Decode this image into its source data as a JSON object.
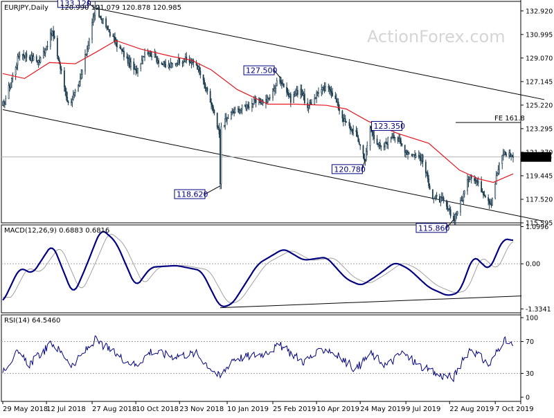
{
  "chart_data": {
    "type": "candlestick",
    "symbol_header": "EURJPY,Daily",
    "ohlc_header": "120.990 121.079 120.878 120.985",
    "watermark": "ActionForex.com",
    "last_price": "120.985",
    "colors": {
      "ma": "#e8141e",
      "channel": "#000000",
      "candles": "#1c3c4f",
      "macd": "#000080",
      "signal": "#a0a0a0",
      "ann_text": "#000080"
    },
    "price_axis": {
      "ylim": [
        115.595,
        133.7
      ],
      "ticks": [
        "132.920",
        "130.995",
        "129.070",
        "127.145",
        "125.220",
        "123.295",
        "121.370",
        "119.445",
        "117.520",
        "115.595"
      ]
    },
    "annotations": [
      {
        "text": "133.120",
        "date": "2018-08-30",
        "value": 133.12
      },
      {
        "text": "127.500",
        "date": "2019-03-04",
        "value": 127.5
      },
      {
        "text": "118.620",
        "date": "2019-01-03",
        "value": 118.62
      },
      {
        "text": "123.350",
        "date": "2019-06-03",
        "value": 123.35
      },
      {
        "text": "120.780",
        "date": "2019-05-29",
        "value": 120.78
      },
      {
        "text": "115.860",
        "date": "2019-08-26",
        "value": 115.86
      }
    ],
    "fe_level": {
      "label": "FE 161.8",
      "value": 123.8
    },
    "channel_lines": [
      {
        "from": {
          "date": "2018-05-29",
          "value": 124.85
        },
        "to": {
          "date": "2019-10-25",
          "value": 115.55
        }
      },
      {
        "from": {
          "date": "2018-08-30",
          "value": 133.15
        },
        "to": {
          "date": "2019-10-25",
          "value": 125.5
        }
      }
    ],
    "key_points": [
      {
        "date": "2018-05-29",
        "value": 125.0
      },
      {
        "date": "2018-06-15",
        "value": 129.5
      },
      {
        "date": "2018-07-05",
        "value": 128.8
      },
      {
        "date": "2018-07-18",
        "value": 131.2
      },
      {
        "date": "2018-08-03",
        "value": 125.3
      },
      {
        "date": "2018-08-13",
        "value": 126.6
      },
      {
        "date": "2018-08-20",
        "value": 129.1
      },
      {
        "date": "2018-08-30",
        "value": 133.12
      },
      {
        "date": "2018-09-20",
        "value": 130.3
      },
      {
        "date": "2018-10-10",
        "value": 127.9
      },
      {
        "date": "2018-10-20",
        "value": 129.8
      },
      {
        "date": "2018-11-10",
        "value": 128.3
      },
      {
        "date": "2018-11-25",
        "value": 129.0
      },
      {
        "date": "2018-12-10",
        "value": 128.6
      },
      {
        "date": "2018-12-25",
        "value": 125.3
      },
      {
        "date": "2019-01-02",
        "value": 122.8
      },
      {
        "date": "2019-01-03",
        "value": 118.62
      },
      {
        "date": "2019-01-04",
        "value": 123.5
      },
      {
        "date": "2019-01-15",
        "value": 124.6
      },
      {
        "date": "2019-02-05",
        "value": 125.4
      },
      {
        "date": "2019-02-20",
        "value": 125.6
      },
      {
        "date": "2019-03-04",
        "value": 127.5
      },
      {
        "date": "2019-03-15",
        "value": 125.7
      },
      {
        "date": "2019-03-25",
        "value": 126.6
      },
      {
        "date": "2019-04-01",
        "value": 124.9
      },
      {
        "date": "2019-04-12",
        "value": 126.4
      },
      {
        "date": "2019-04-24",
        "value": 126.6
      },
      {
        "date": "2019-05-08",
        "value": 123.9
      },
      {
        "date": "2019-05-20",
        "value": 122.8
      },
      {
        "date": "2019-05-29",
        "value": 120.78
      },
      {
        "date": "2019-06-03",
        "value": 123.35
      },
      {
        "date": "2019-06-14",
        "value": 121.6
      },
      {
        "date": "2019-06-26",
        "value": 122.9
      },
      {
        "date": "2019-07-10",
        "value": 121.4
      },
      {
        "date": "2019-07-25",
        "value": 120.9
      },
      {
        "date": "2019-08-05",
        "value": 117.7
      },
      {
        "date": "2019-08-15",
        "value": 117.4
      },
      {
        "date": "2019-08-26",
        "value": 115.86
      },
      {
        "date": "2019-09-03",
        "value": 117.4
      },
      {
        "date": "2019-09-12",
        "value": 119.6
      },
      {
        "date": "2019-09-18",
        "value": 119.0
      },
      {
        "date": "2019-10-01",
        "value": 117.4
      },
      {
        "date": "2019-10-03",
        "value": 117.3
      },
      {
        "date": "2019-10-09",
        "value": 119.7
      },
      {
        "date": "2019-10-15",
        "value": 121.3
      },
      {
        "date": "2019-10-21",
        "value": 121.2
      },
      {
        "date": "2019-10-25",
        "value": 121.0
      }
    ],
    "ma_points": [
      {
        "date": "2018-05-29",
        "value": 127.8
      },
      {
        "date": "2018-06-20",
        "value": 127.4
      },
      {
        "date": "2018-07-15",
        "value": 128.7
      },
      {
        "date": "2018-08-10",
        "value": 128.6
      },
      {
        "date": "2018-08-30",
        "value": 129.5
      },
      {
        "date": "2018-09-20",
        "value": 130.5
      },
      {
        "date": "2018-10-15",
        "value": 129.8
      },
      {
        "date": "2018-11-15",
        "value": 129.2
      },
      {
        "date": "2018-12-05",
        "value": 128.9
      },
      {
        "date": "2018-12-25",
        "value": 128.1
      },
      {
        "date": "2019-01-20",
        "value": 126.5
      },
      {
        "date": "2019-02-20",
        "value": 125.3
      },
      {
        "date": "2019-03-20",
        "value": 125.3
      },
      {
        "date": "2019-04-20",
        "value": 125.2
      },
      {
        "date": "2019-05-10",
        "value": 124.9
      },
      {
        "date": "2019-06-01",
        "value": 123.9
      },
      {
        "date": "2019-07-01",
        "value": 122.9
      },
      {
        "date": "2019-08-01",
        "value": 122.1
      },
      {
        "date": "2019-09-01",
        "value": 119.9
      },
      {
        "date": "2019-09-20",
        "value": 119.2
      },
      {
        "date": "2019-10-05",
        "value": 118.9
      },
      {
        "date": "2019-10-25",
        "value": 119.6
      }
    ],
    "macd": {
      "label": "MACD(12,26,9) 0.6883 0.6816",
      "ylim": [
        -1.45,
        1.15
      ],
      "ticks": [
        "1.0996",
        "0.00",
        "-1.3341"
      ],
      "points": [
        {
          "date": "2018-05-29",
          "value": -1.15
        },
        {
          "date": "2018-06-15",
          "value": -0.1
        },
        {
          "date": "2018-06-28",
          "value": -0.3
        },
        {
          "date": "2018-07-18",
          "value": 0.6
        },
        {
          "date": "2018-08-08",
          "value": -0.95
        },
        {
          "date": "2018-08-20",
          "value": -0.15
        },
        {
          "date": "2018-09-05",
          "value": 1.05
        },
        {
          "date": "2018-09-20",
          "value": 0.65
        },
        {
          "date": "2018-10-10",
          "value": -0.7
        },
        {
          "date": "2018-10-25",
          "value": -0.1
        },
        {
          "date": "2018-11-20",
          "value": -0.05
        },
        {
          "date": "2018-12-15",
          "value": -0.2
        },
        {
          "date": "2019-01-03",
          "value": -1.3
        },
        {
          "date": "2019-01-15",
          "value": -1.2
        },
        {
          "date": "2019-02-10",
          "value": 0.0
        },
        {
          "date": "2019-03-08",
          "value": 0.45
        },
        {
          "date": "2019-03-28",
          "value": 0.1
        },
        {
          "date": "2019-04-20",
          "value": 0.2
        },
        {
          "date": "2019-05-10",
          "value": -0.45
        },
        {
          "date": "2019-05-25",
          "value": -0.65
        },
        {
          "date": "2019-06-10",
          "value": -0.35
        },
        {
          "date": "2019-06-28",
          "value": 0.05
        },
        {
          "date": "2019-07-12",
          "value": -0.15
        },
        {
          "date": "2019-08-01",
          "value": -0.7
        },
        {
          "date": "2019-08-20",
          "value": -0.95
        },
        {
          "date": "2019-09-01",
          "value": -0.85
        },
        {
          "date": "2019-09-15",
          "value": 0.25
        },
        {
          "date": "2019-10-01",
          "value": -0.2
        },
        {
          "date": "2019-10-15",
          "value": 0.75
        },
        {
          "date": "2019-10-25",
          "value": 0.69
        }
      ],
      "trendline": {
        "from": {
          "date": "2019-01-03",
          "value": -1.3
        },
        "to": {
          "date": "2019-10-25",
          "value": -0.95
        }
      }
    },
    "rsi": {
      "label": "RSI(14) 64.5460",
      "ylim": [
        0,
        100
      ],
      "ticks": [
        "100",
        "70",
        "30",
        "0"
      ],
      "points": [
        {
          "date": "2018-05-29",
          "value": 35
        },
        {
          "date": "2018-06-12",
          "value": 55
        },
        {
          "date": "2018-06-25",
          "value": 42
        },
        {
          "date": "2018-07-18",
          "value": 68
        },
        {
          "date": "2018-08-08",
          "value": 40
        },
        {
          "date": "2018-08-20",
          "value": 58
        },
        {
          "date": "2018-08-30",
          "value": 72
        },
        {
          "date": "2018-09-25",
          "value": 50
        },
        {
          "date": "2018-10-10",
          "value": 40
        },
        {
          "date": "2018-10-25",
          "value": 58
        },
        {
          "date": "2018-11-15",
          "value": 52
        },
        {
          "date": "2018-12-10",
          "value": 55
        },
        {
          "date": "2019-01-03",
          "value": 25
        },
        {
          "date": "2019-01-15",
          "value": 48
        },
        {
          "date": "2019-02-15",
          "value": 55
        },
        {
          "date": "2019-03-04",
          "value": 65
        },
        {
          "date": "2019-03-28",
          "value": 45
        },
        {
          "date": "2019-04-20",
          "value": 62
        },
        {
          "date": "2019-05-20",
          "value": 35
        },
        {
          "date": "2019-06-03",
          "value": 55
        },
        {
          "date": "2019-06-20",
          "value": 40
        },
        {
          "date": "2019-07-05",
          "value": 56
        },
        {
          "date": "2019-07-25",
          "value": 38
        },
        {
          "date": "2019-08-10",
          "value": 28
        },
        {
          "date": "2019-08-26",
          "value": 25
        },
        {
          "date": "2019-09-12",
          "value": 62
        },
        {
          "date": "2019-10-01",
          "value": 40
        },
        {
          "date": "2019-10-15",
          "value": 72
        },
        {
          "date": "2019-10-25",
          "value": 64.5
        }
      ]
    },
    "x_ticks": [
      {
        "label": "29 May 2018",
        "date": "2018-05-29"
      },
      {
        "label": "12 Jul 2018",
        "date": "2018-07-12"
      },
      {
        "label": "27 Aug 2018",
        "date": "2018-08-27"
      },
      {
        "label": "10 Oct 2018",
        "date": "2018-10-10"
      },
      {
        "label": "23 Nov 2018",
        "date": "2018-11-23"
      },
      {
        "label": "10 Jan 2019",
        "date": "2019-01-10"
      },
      {
        "label": "25 Feb 2019",
        "date": "2019-02-25"
      },
      {
        "label": "10 Apr 2019",
        "date": "2019-04-10"
      },
      {
        "label": "24 May 2019",
        "date": "2019-05-24"
      },
      {
        "label": "9 Jul 2019",
        "date": "2019-07-09"
      },
      {
        "label": "22 Aug 2019",
        "date": "2019-08-22"
      },
      {
        "label": "7 Oct 2019",
        "date": "2019-10-07"
      }
    ]
  }
}
